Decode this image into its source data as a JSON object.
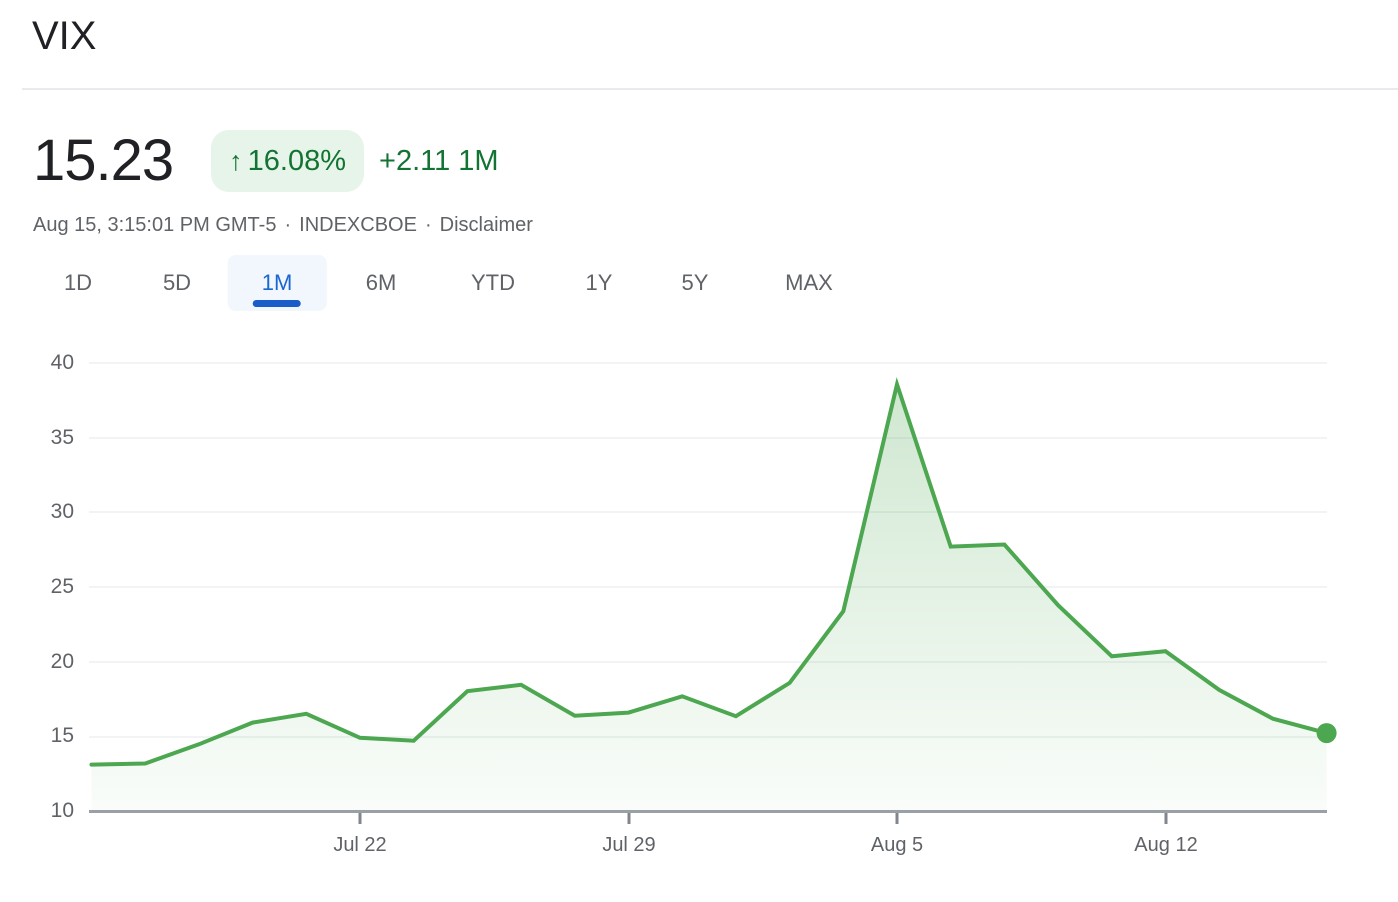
{
  "header": {
    "title": "VIX"
  },
  "quote": {
    "price": "15.23",
    "arrow_icon": "↑",
    "percent_change": "16.08%",
    "absolute_change": "+2.11 1M",
    "timestamp": "Aug 15, 3:15:01 PM GMT-5",
    "separator": "·",
    "exchange": "INDEXCBOE",
    "disclaimer": "Disclaimer",
    "colors": {
      "up_green_text": "#137333",
      "badge_bg": "#e6f4ea",
      "price_text": "#202124",
      "meta_text": "#5f6368"
    }
  },
  "tabs": {
    "active": "1M",
    "accent": "#1967d2",
    "items": [
      {
        "label": "1D",
        "active": false
      },
      {
        "label": "5D",
        "active": false
      },
      {
        "label": "1M",
        "active": true
      },
      {
        "label": "6M",
        "active": false
      },
      {
        "label": "YTD",
        "active": false
      },
      {
        "label": "1Y",
        "active": false
      },
      {
        "label": "5Y",
        "active": false
      },
      {
        "label": "MAX",
        "active": false
      }
    ]
  },
  "chart_data": {
    "type": "area",
    "title": "VIX 1M price history",
    "x": [
      "Jul 15",
      "Jul 16",
      "Jul 17",
      "Jul 18",
      "Jul 19",
      "Jul 22",
      "Jul 23",
      "Jul 24",
      "Jul 25",
      "Jul 26",
      "Jul 29",
      "Jul 30",
      "Jul 31",
      "Aug 1",
      "Aug 2",
      "Aug 5",
      "Aug 6",
      "Aug 7",
      "Aug 8",
      "Aug 9",
      "Aug 12",
      "Aug 13",
      "Aug 14",
      "Aug 15"
    ],
    "values": [
      13.12,
      13.19,
      14.48,
      15.93,
      16.52,
      14.91,
      14.72,
      18.04,
      18.46,
      16.39,
      16.6,
      17.69,
      16.36,
      18.59,
      23.39,
      38.57,
      27.71,
      27.85,
      23.79,
      20.37,
      20.71,
      18.12,
      16.19,
      15.23
    ],
    "last_value": 15.23,
    "ylim": [
      10,
      40
    ],
    "y_ticks": [
      40,
      35,
      30,
      25,
      20,
      15,
      10
    ],
    "x_ticks": [
      {
        "label": "Jul 22",
        "index": 5
      },
      {
        "label": "Jul 29",
        "index": 10
      },
      {
        "label": "Aug 5",
        "index": 15
      },
      {
        "label": "Aug 12",
        "index": 20
      }
    ],
    "grid": true,
    "legend": false,
    "line_color": "#4ca750",
    "area_fill_top_opacity": 0.28,
    "area_fill_bottom_opacity": 0.03,
    "endpoint_dot": true
  }
}
